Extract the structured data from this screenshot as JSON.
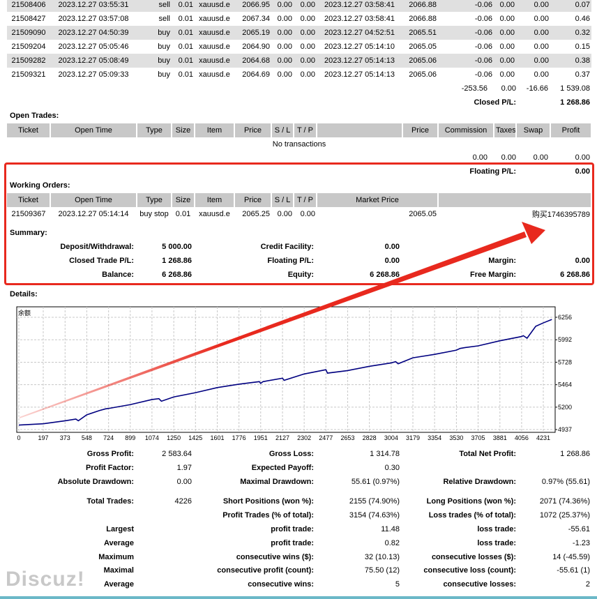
{
  "closed_trades": {
    "rows": [
      [
        "21508406",
        "2023.12.27 03:55:31",
        "sell",
        "0.01",
        "xauusd.e",
        "2066.95",
        "0.00",
        "0.00",
        "2023.12.27 03:58:41",
        "2066.88",
        "-0.06",
        "0.00",
        "0.00",
        "0.07"
      ],
      [
        "21508427",
        "2023.12.27 03:57:08",
        "sell",
        "0.01",
        "xauusd.e",
        "2067.34",
        "0.00",
        "0.00",
        "2023.12.27 03:58:41",
        "2066.88",
        "-0.06",
        "0.00",
        "0.00",
        "0.46"
      ],
      [
        "21509090",
        "2023.12.27 04:50:39",
        "buy",
        "0.01",
        "xauusd.e",
        "2065.19",
        "0.00",
        "0.00",
        "2023.12.27 04:52:51",
        "2065.51",
        "-0.06",
        "0.00",
        "0.00",
        "0.32"
      ],
      [
        "21509204",
        "2023.12.27 05:05:46",
        "buy",
        "0.01",
        "xauusd.e",
        "2064.90",
        "0.00",
        "0.00",
        "2023.12.27 05:14:10",
        "2065.05",
        "-0.06",
        "0.00",
        "0.00",
        "0.15"
      ],
      [
        "21509282",
        "2023.12.27 05:08:49",
        "buy",
        "0.01",
        "xauusd.e",
        "2064.68",
        "0.00",
        "0.00",
        "2023.12.27 05:14:13",
        "2065.06",
        "-0.06",
        "0.00",
        "0.00",
        "0.38"
      ],
      [
        "21509321",
        "2023.12.27 05:09:33",
        "buy",
        "0.01",
        "xauusd.e",
        "2064.69",
        "0.00",
        "0.00",
        "2023.12.27 05:14:13",
        "2065.06",
        "-0.06",
        "0.00",
        "0.00",
        "0.37"
      ]
    ],
    "totals": [
      "-253.56",
      "0.00",
      "-16.66",
      "1 539.08"
    ],
    "closed_pl_label": "Closed P/L:",
    "closed_pl": "1 268.86"
  },
  "open_trades": {
    "title": "Open Trades:",
    "headers": [
      "Ticket",
      "Open Time",
      "Type",
      "Size",
      "Item",
      "Price",
      "S / L",
      "T / P",
      "",
      "Price",
      "Commission",
      "Taxes",
      "Swap",
      "Profit"
    ],
    "empty": "No transactions",
    "totals": [
      "0.00",
      "0.00",
      "0.00",
      "0.00"
    ],
    "floating_label": "Floating P/L:",
    "floating": "0.00"
  },
  "working_orders": {
    "title": "Working Orders:",
    "headers": [
      "Ticket",
      "Open Time",
      "Type",
      "Size",
      "Item",
      "Price",
      "S / L",
      "T / P",
      "Market Price",
      ""
    ],
    "row": [
      "21509367",
      "2023.12.27 05:14:14",
      "buy stop",
      "0.01",
      "xauusd.e",
      "2065.25",
      "0.00",
      "0.00",
      "2065.05",
      "购买1746395789"
    ]
  },
  "summary": {
    "title": "Summary:",
    "deposit_label": "Deposit/Withdrawal:",
    "deposit": "5 000.00",
    "credit_label": "Credit Facility:",
    "credit": "0.00",
    "closed_label": "Closed Trade P/L:",
    "closed": "1 268.86",
    "floating_label": "Floating P/L:",
    "floating": "0.00",
    "margin_label": "Margin:",
    "margin": "0.00",
    "balance_label": "Balance:",
    "balance": "6 268.86",
    "equity_label": "Equity:",
    "equity": "6 268.86",
    "free_margin_label": "Free Margin:",
    "free_margin": "6 268.86"
  },
  "details": {
    "title": "Details:"
  },
  "chart_data": {
    "type": "line",
    "title": "余额",
    "xlabel": "",
    "ylabel": "",
    "x_ticks": [
      "0",
      "197",
      "373",
      "548",
      "724",
      "899",
      "1074",
      "1250",
      "1425",
      "1601",
      "1776",
      "1951",
      "2127",
      "2302",
      "2477",
      "2653",
      "2828",
      "3004",
      "3179",
      "3354",
      "3530",
      "3705",
      "3881",
      "4056",
      "4231"
    ],
    "y_ticks": [
      "6256",
      "5992",
      "5728",
      "5464",
      "5200",
      "4937"
    ],
    "xlim": [
      0,
      4320
    ],
    "ylim": [
      4937,
      6256
    ],
    "grid": true,
    "line_color": "#000080",
    "series": [
      {
        "name": "余额",
        "x": [
          0,
          197,
          373,
          460,
          480,
          548,
          650,
          700,
          724,
          899,
          1074,
          1130,
          1150,
          1250,
          1425,
          1601,
          1776,
          1940,
          1951,
          1970,
          2127,
          2140,
          2302,
          2477,
          2490,
          2653,
          2828,
          3004,
          3040,
          3060,
          3179,
          3354,
          3530,
          3560,
          3600,
          3705,
          3881,
          4056,
          4070,
          4100,
          4170,
          4231,
          4300
        ],
        "y": [
          4990,
          5005,
          5040,
          5060,
          5040,
          5110,
          5160,
          5180,
          5185,
          5230,
          5290,
          5300,
          5270,
          5320,
          5370,
          5430,
          5470,
          5500,
          5480,
          5500,
          5540,
          5515,
          5590,
          5640,
          5600,
          5630,
          5680,
          5720,
          5735,
          5710,
          5780,
          5820,
          5870,
          5890,
          5900,
          5920,
          5980,
          6030,
          6040,
          6010,
          6150,
          6190,
          6230
        ]
      }
    ]
  },
  "stats": [
    [
      "Gross Profit:",
      "2 583.64",
      "Gross Loss:",
      "1 314.78",
      "Total Net Profit:",
      "1 268.86"
    ],
    [
      "Profit Factor:",
      "1.97",
      "Expected Payoff:",
      "0.30",
      "",
      ""
    ],
    [
      "Absolute Drawdown:",
      "0.00",
      "Maximal Drawdown:",
      "55.61 (0.97%)",
      "Relative Drawdown:",
      "0.97% (55.61)"
    ],
    [
      "Total Trades:",
      "4226",
      "Short Positions (won %):",
      "2155 (74.90%)",
      "Long Positions (won %):",
      "2071 (74.36%)"
    ],
    [
      "",
      "",
      "Profit Trades (% of total):",
      "3154 (74.63%)",
      "Loss trades (% of total):",
      "1072 (25.37%)"
    ],
    [
      "Largest",
      "",
      "profit trade:",
      "11.48",
      "loss trade:",
      "-55.61"
    ],
    [
      "Average",
      "",
      "profit trade:",
      "0.82",
      "loss trade:",
      "-1.23"
    ],
    [
      "Maximum",
      "",
      "consecutive wins ($):",
      "32 (10.13)",
      "consecutive losses ($):",
      "14 (-45.59)"
    ],
    [
      "Maximal",
      "",
      "consecutive profit (count):",
      "75.50 (12)",
      "consecutive loss (count):",
      "-55.61 (1)"
    ],
    [
      "Average",
      "",
      "consecutive wins:",
      "5",
      "consecutive losses:",
      "2"
    ]
  ],
  "watermark": "Discuz!",
  "colors": {
    "highlight": "#e8291e",
    "line": "#000080",
    "footer": "#6bb8c8"
  }
}
